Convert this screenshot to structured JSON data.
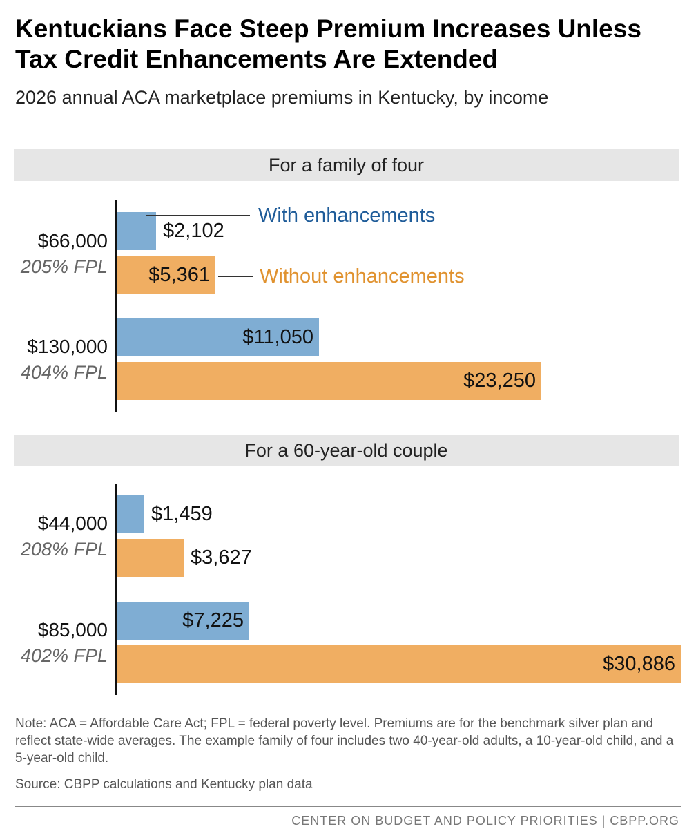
{
  "header": {
    "title": "Kentuckians Face Steep Premium Increases Unless Tax Credit Enhancements Are Extended",
    "subtitle": "2026 annual ACA marketplace premiums in Kentucky, by income"
  },
  "legend": {
    "with": "With enhancements",
    "without": "Without enhancements"
  },
  "colors": {
    "with": "#7fadd3",
    "without": "#f0ae62",
    "with_text": "#1f5c99",
    "without_text": "#e0922f"
  },
  "chart_data": {
    "type": "bar",
    "orientation": "horizontal",
    "series_names": [
      "With enhancements",
      "Without enhancements"
    ],
    "panels": [
      {
        "title": "For a family of four",
        "groups": [
          {
            "income": "$66,000",
            "fpl": "205% FPL",
            "with": 2102,
            "without": 5361,
            "with_label": "$2,102",
            "without_label": "$5,361"
          },
          {
            "income": "$130,000",
            "fpl": "404% FPL",
            "with": 11050,
            "without": 23250,
            "with_label": "$11,050",
            "without_label": "$23,250"
          }
        ]
      },
      {
        "title": "For a 60-year-old couple",
        "groups": [
          {
            "income": "$44,000",
            "fpl": "208% FPL",
            "with": 1459,
            "without": 3627,
            "with_label": "$1,459",
            "without_label": "$3,627"
          },
          {
            "income": "$85,000",
            "fpl": "402% FPL",
            "with": 7225,
            "without": 30886,
            "with_label": "$7,225",
            "without_label": "$30,886"
          }
        ]
      }
    ]
  },
  "note": "Note: ACA = Affordable Care Act; FPL = federal poverty level. Premiums are for the benchmark silver plan and reflect state-wide averages. The example family of four includes two 40-year-old adults, a 10-year-old child, and a 5-year-old child.",
  "source": "Source: CBPP calculations and Kentucky plan data",
  "footer": "CENTER ON BUDGET AND POLICY PRIORITIES | CBPP.ORG"
}
